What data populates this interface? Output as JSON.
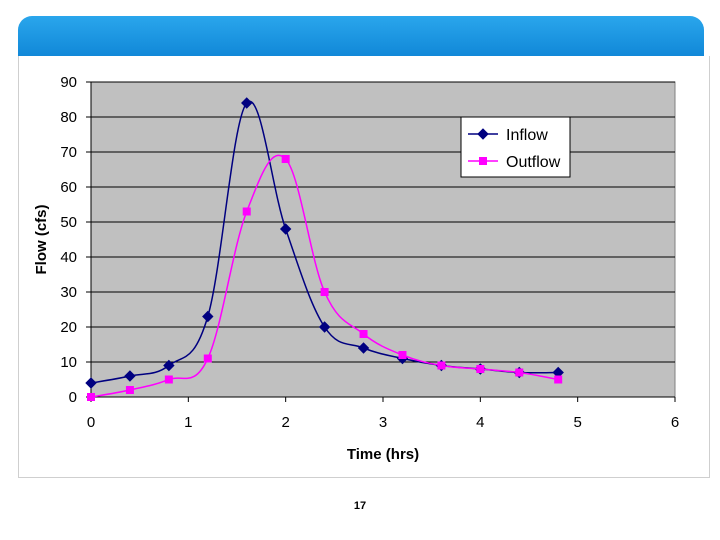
{
  "slide": {
    "page_number": "17",
    "header_color": "#1a96e2"
  },
  "chart_data": {
    "type": "line",
    "title": "",
    "xlabel": "Time (hrs)",
    "ylabel": "Flow (cfs)",
    "xlim": [
      0,
      6
    ],
    "ylim": [
      0,
      90
    ],
    "xticks": [
      0,
      1,
      2,
      3,
      4,
      5,
      6
    ],
    "yticks": [
      0,
      10,
      20,
      30,
      40,
      50,
      60,
      70,
      80,
      90
    ],
    "grid": "horizontal",
    "plot_background": "#c0c0c0",
    "legend_position": "top-right",
    "series": [
      {
        "name": "Inflow",
        "color": "#000080",
        "marker": "diamond",
        "x": [
          0,
          0.4,
          0.8,
          1.2,
          1.6,
          2.0,
          2.4,
          2.8,
          3.2,
          3.6,
          4.0,
          4.4,
          4.8
        ],
        "y": [
          4,
          6,
          9,
          23,
          84,
          48,
          20,
          14,
          11,
          9,
          8,
          7,
          7
        ]
      },
      {
        "name": "Outflow",
        "color": "#ff00ff",
        "marker": "square",
        "x": [
          0,
          0.4,
          0.8,
          1.2,
          1.6,
          2.0,
          2.4,
          2.8,
          3.2,
          3.6,
          4.0,
          4.4,
          4.8
        ],
        "y": [
          0,
          2,
          5,
          11,
          53,
          68,
          30,
          18,
          12,
          9,
          8,
          7,
          5
        ]
      }
    ]
  }
}
